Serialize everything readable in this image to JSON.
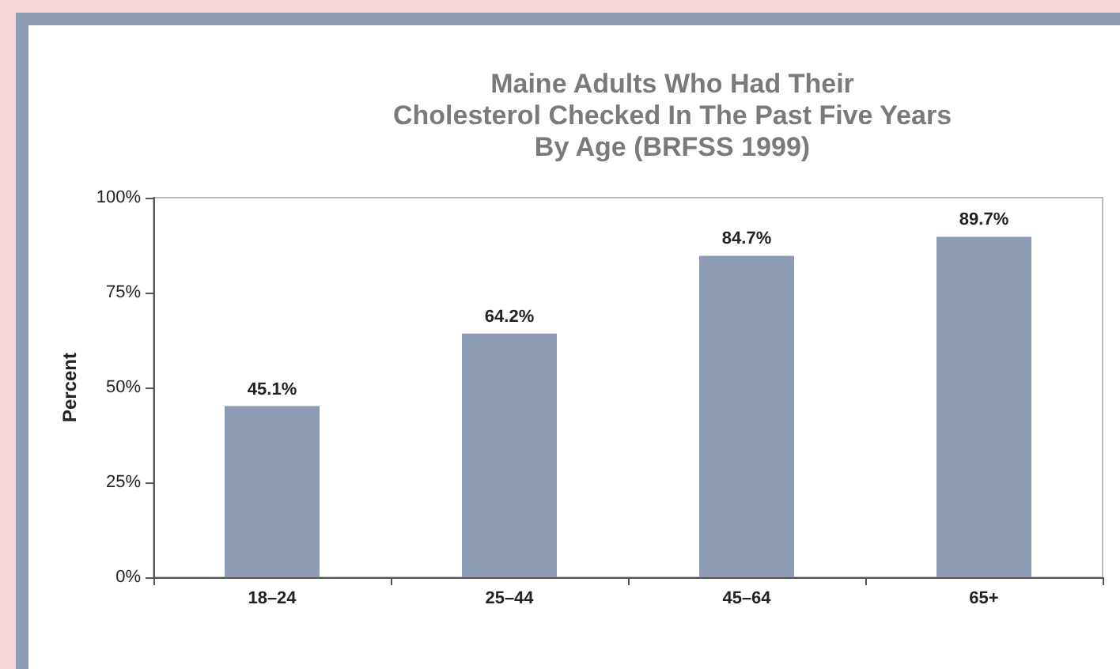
{
  "chart_data": {
    "type": "bar",
    "title": "Maine Adults Who Had Their\nCholesterol Checked In The Past Five Years\nBy Age (BRFSS 1999)",
    "ylabel": "Percent",
    "categories": [
      "18–24",
      "25–44",
      "45–64",
      "65+"
    ],
    "values": [
      45.1,
      64.2,
      84.7,
      89.7
    ],
    "color": "#8e9bb5",
    "value_labels": [
      "45.1%",
      "64.2%",
      "84.7%",
      "89.7%"
    ],
    "ylim": [
      0,
      100
    ],
    "yticks": [
      {
        "value": 0,
        "label": "0%"
      },
      {
        "value": 25,
        "label": "25%"
      },
      {
        "value": 50,
        "label": "50%"
      },
      {
        "value": 75,
        "label": "75%"
      },
      {
        "value": 100,
        "label": "100%"
      }
    ],
    "grid": false
  }
}
